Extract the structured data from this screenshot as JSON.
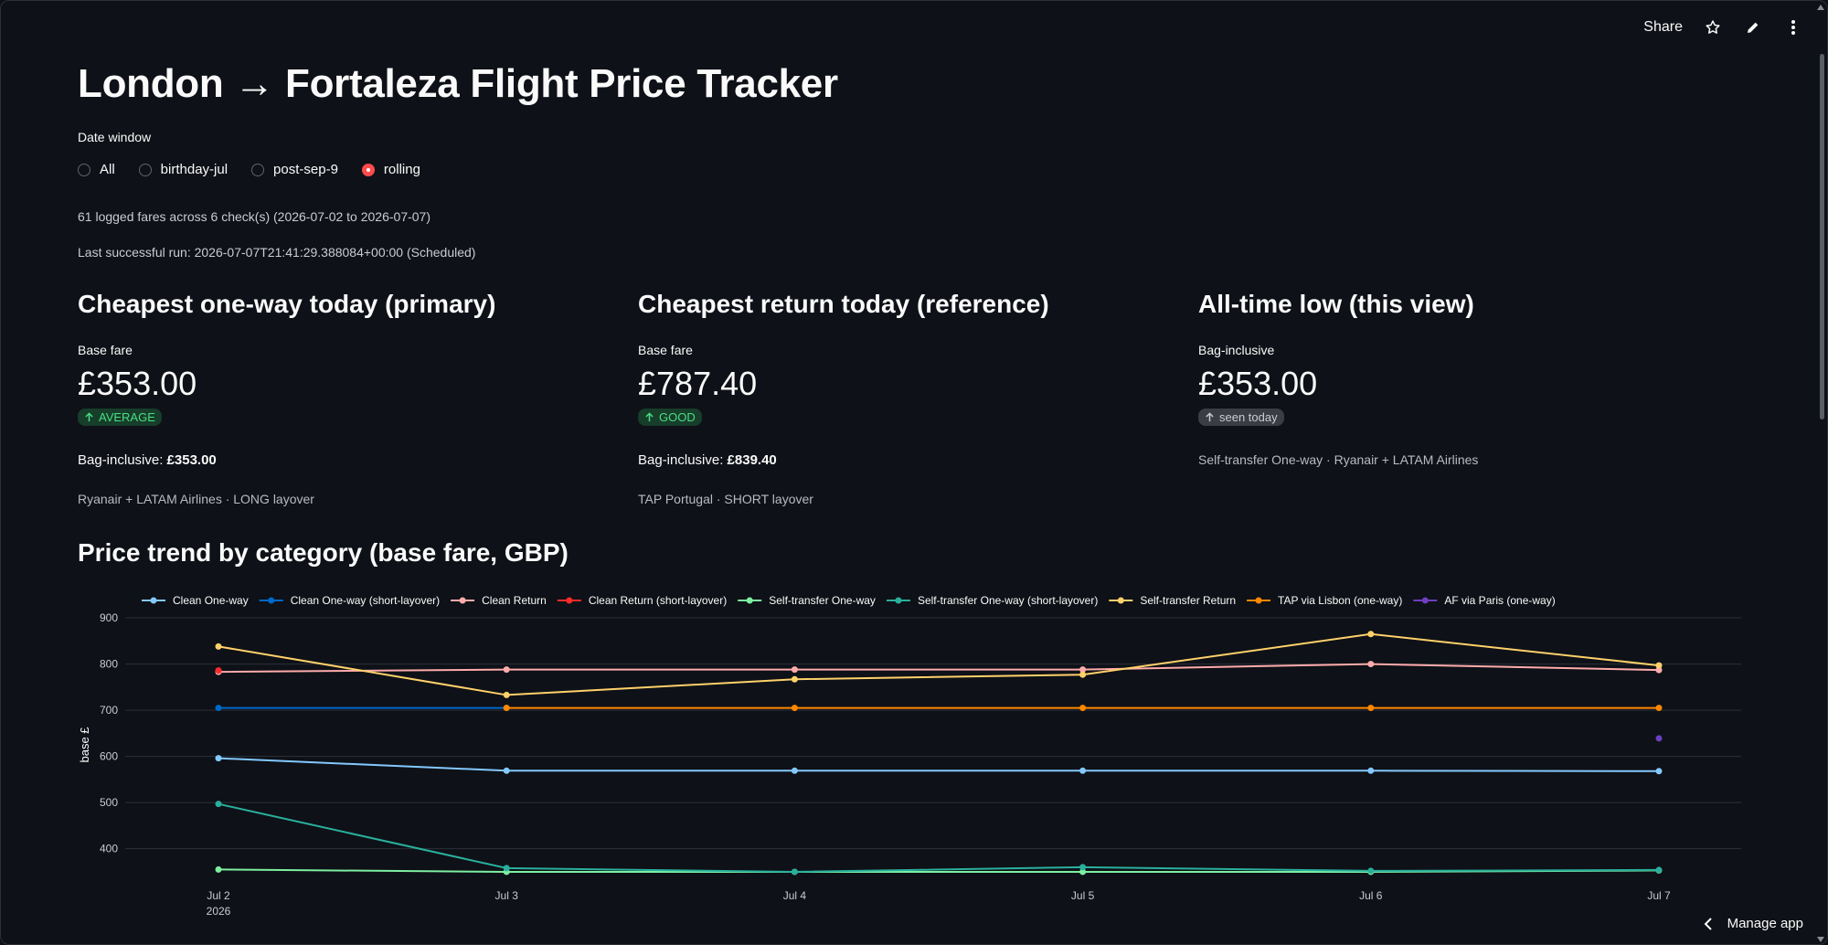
{
  "toolbar": {
    "share_label": "Share",
    "icons": [
      "star-icon",
      "pencil-icon",
      "kebab-menu-icon"
    ]
  },
  "title": "London → Fortaleza Flight Price Tracker",
  "date_window": {
    "label": "Date window",
    "options": [
      "All",
      "birthday-jul",
      "post-sep-9",
      "rolling"
    ],
    "selected": "rolling"
  },
  "captions": {
    "fares": "61 logged fares across 6 check(s) (2026-07-02 to 2026-07-07)",
    "last_run": "Last successful run: 2026-07-07T21:41:29.388084+00:00 (Scheduled)"
  },
  "metrics": [
    {
      "heading": "Cheapest one-way today (primary)",
      "label": "Base fare",
      "value": "£353.00",
      "delta": "AVERAGE",
      "delta_style": "green",
      "bag_label": "Bag-inclusive: ",
      "bag_value": "£353.00",
      "details": "Ryanair + LATAM Airlines · LONG layover"
    },
    {
      "heading": "Cheapest return today (reference)",
      "label": "Base fare",
      "value": "£787.40",
      "delta": "GOOD",
      "delta_style": "green",
      "bag_label": "Bag-inclusive: ",
      "bag_value": "£839.40",
      "details": "TAP Portugal · SHORT layover"
    },
    {
      "heading": "All-time low (this view)",
      "label": "Bag-inclusive",
      "value": "£353.00",
      "delta": "seen today",
      "delta_style": "grey",
      "bag_label": "",
      "bag_value": "",
      "details": "Self-transfer One-way · Ryanair + LATAM Airlines"
    }
  ],
  "chart_title": "Price trend by category (base fare, GBP)",
  "chart_data": {
    "type": "line",
    "x": [
      "Jul 2",
      "Jul 3",
      "Jul 4",
      "Jul 5",
      "Jul 6",
      "Jul 7"
    ],
    "x_year_label": "2026",
    "ylabel": "base £",
    "ylim": [
      340,
      910
    ],
    "yticks": [
      400,
      500,
      600,
      700,
      800,
      900
    ],
    "grid": true,
    "legend": "top",
    "series": [
      {
        "name": "Clean One-way",
        "color": "#83c9ff",
        "values": [
          596,
          569,
          569,
          569,
          569,
          568
        ]
      },
      {
        "name": "Clean One-way (short-layover)",
        "color": "#0068c9",
        "values": [
          705,
          705,
          null,
          null,
          null,
          null
        ]
      },
      {
        "name": "Clean Return",
        "color": "#ffabab",
        "values": [
          783,
          788,
          788,
          788,
          800,
          787
        ]
      },
      {
        "name": "Clean Return (short-layover)",
        "color": "#ff2b2b",
        "values": [
          786,
          null,
          null,
          null,
          null,
          null
        ]
      },
      {
        "name": "Self-transfer One-way",
        "color": "#7defa1",
        "values": [
          355,
          350,
          350,
          350,
          350,
          353
        ]
      },
      {
        "name": "Self-transfer One-way (short-layover)",
        "color": "#29b09d",
        "values": [
          497,
          358,
          350,
          360,
          352,
          354
        ]
      },
      {
        "name": "Self-transfer Return",
        "color": "#ffd16a",
        "values": [
          838,
          733,
          767,
          777,
          865,
          797
        ]
      },
      {
        "name": "TAP via Lisbon (one-way)",
        "color": "#ff8700",
        "values": [
          null,
          705,
          705,
          705,
          705,
          705
        ]
      },
      {
        "name": "AF via Paris (one-way)",
        "color": "#6d3fc0",
        "values": [
          null,
          null,
          null,
          null,
          null,
          639
        ]
      }
    ]
  },
  "manage_app": "Manage app"
}
